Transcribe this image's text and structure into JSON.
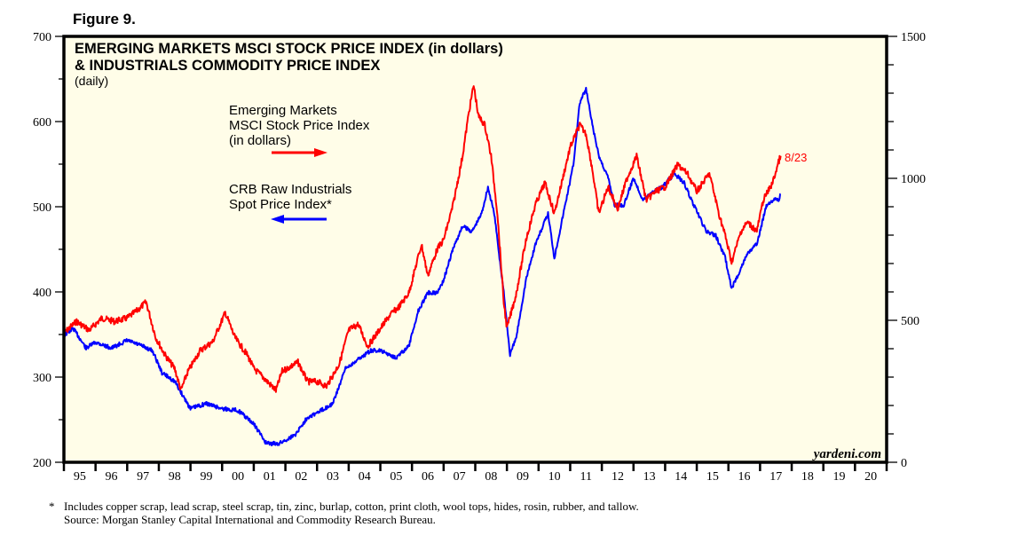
{
  "figure_label": "Figure 9.",
  "watermark": "yardeni.com",
  "footnote": {
    "asterisk": "*",
    "line1": "Includes copper scrap, lead scrap, steel scrap, tin, zinc, burlap, cotton, print cloth, wool tops, hides, rosin, rubber, and tallow.",
    "line2": "Source: Morgan Stanley Capital International and Commodity Research Bureau."
  },
  "colors": {
    "background": "#fffde8",
    "em": "#ff0000",
    "crb": "#0000ff",
    "frame": "#000000"
  },
  "chart_data": {
    "type": "line",
    "title": "EMERGING MARKETS MSCI STOCK PRICE INDEX (in dollars)",
    "title_line2": "& INDUSTRIALS COMMODITY PRICE INDEX",
    "subtitle": "(daily)",
    "end_date_label": "8/23",
    "xlim": [
      1995,
      2021
    ],
    "x_tick_labels": [
      "95",
      "96",
      "97",
      "98",
      "99",
      "00",
      "01",
      "02",
      "03",
      "04",
      "05",
      "06",
      "07",
      "08",
      "09",
      "10",
      "11",
      "12",
      "13",
      "14",
      "15",
      "16",
      "17",
      "18",
      "19",
      "20"
    ],
    "left_axis": {
      "ylim": [
        200,
        700
      ],
      "ticks": [
        200,
        300,
        400,
        500,
        600,
        700
      ],
      "minor_step": 50
    },
    "right_axis": {
      "ylim": [
        0,
        1500
      ],
      "ticks": [
        0,
        500,
        1000,
        1500
      ],
      "minor_step": 100
    },
    "grid": false,
    "legend": [
      {
        "lines": [
          "Emerging Markets",
          "MSCI Stock Price Index",
          "(in dollars)"
        ],
        "arrow": "right",
        "series": "em"
      },
      {
        "lines": [
          "CRB Raw Industrials",
          "Spot Price Index*"
        ],
        "arrow": "left",
        "series": "crb"
      }
    ],
    "series": [
      {
        "id": "em",
        "name": "Emerging Markets MSCI Stock Price Index (in dollars)",
        "axis": "right",
        "x": [
          1995.0,
          1995.4,
          1995.8,
          1996.2,
          1996.6,
          1997.0,
          1997.3,
          1997.6,
          1997.9,
          1998.2,
          1998.5,
          1998.7,
          1998.9,
          1999.3,
          1999.7,
          2000.1,
          2000.4,
          2000.8,
          2001.0,
          2001.3,
          2001.7,
          2001.9,
          2002.4,
          2002.7,
          2003.0,
          2003.3,
          2003.7,
          2004.0,
          2004.3,
          2004.6,
          2004.9,
          2005.3,
          2005.6,
          2005.9,
          2006.3,
          2006.5,
          2006.8,
          2007.0,
          2007.3,
          2007.6,
          2007.8,
          2007.95,
          2008.1,
          2008.3,
          2008.5,
          2008.7,
          2008.9,
          2009.0,
          2009.3,
          2009.6,
          2009.9,
          2010.2,
          2010.5,
          2010.8,
          2011.0,
          2011.3,
          2011.5,
          2011.7,
          2011.9,
          2012.2,
          2012.5,
          2012.8,
          2013.1,
          2013.4,
          2013.7,
          2014.0,
          2014.4,
          2014.7,
          2015.0,
          2015.4,
          2015.7,
          2015.9,
          2016.1,
          2016.4,
          2016.6,
          2016.9,
          2017.1,
          2017.4,
          2017.6,
          2017.65
        ],
        "values": [
          455,
          496,
          465,
          508,
          496,
          508,
          533,
          564,
          440,
          377,
          330,
          253,
          315,
          393,
          424,
          527,
          440,
          377,
          330,
          299,
          253,
          321,
          352,
          284,
          284,
          268,
          346,
          465,
          486,
          408,
          455,
          518,
          549,
          596,
          767,
          658,
          751,
          783,
          907,
          1079,
          1235,
          1328,
          1219,
          1188,
          1079,
          876,
          564,
          471,
          596,
          783,
          907,
          985,
          876,
          1017,
          1110,
          1188,
          1157,
          1032,
          876,
          970,
          892,
          1001,
          1079,
          923,
          954,
          970,
          1048,
          1017,
          954,
          1017,
          876,
          798,
          705,
          814,
          845,
          814,
          923,
          985,
          1063,
          1079
        ]
      },
      {
        "id": "crb",
        "name": "CRB Raw Industrials Spot Price Index",
        "axis": "left",
        "x": [
          1995.0,
          1995.3,
          1995.7,
          1996.0,
          1996.5,
          1997.0,
          1997.5,
          1997.8,
          1998.1,
          1998.5,
          1999.0,
          1999.5,
          2000.0,
          2000.5,
          2001.0,
          2001.4,
          2001.8,
          2002.3,
          2002.7,
          2003.0,
          2003.5,
          2003.9,
          2004.3,
          2004.7,
          2005.0,
          2005.5,
          2005.9,
          2006.2,
          2006.5,
          2006.8,
          2007.0,
          2007.3,
          2007.6,
          2007.9,
          2008.2,
          2008.4,
          2008.6,
          2008.9,
          2009.1,
          2009.3,
          2009.6,
          2009.9,
          2010.3,
          2010.5,
          2010.9,
          2011.1,
          2011.3,
          2011.5,
          2011.7,
          2011.9,
          2012.2,
          2012.4,
          2012.7,
          2013.0,
          2013.3,
          2013.6,
          2013.9,
          2014.3,
          2014.6,
          2014.9,
          2015.3,
          2015.6,
          2015.9,
          2016.1,
          2016.3,
          2016.6,
          2016.9,
          2017.2,
          2017.4,
          2017.6,
          2017.65
        ],
        "values": [
          349,
          357,
          334,
          341,
          334,
          343,
          336,
          331,
          305,
          295,
          263,
          269,
          263,
          261,
          245,
          222,
          222,
          232,
          253,
          258,
          269,
          310,
          321,
          331,
          331,
          323,
          336,
          378,
          399,
          399,
          414,
          451,
          477,
          471,
          492,
          523,
          492,
          399,
          326,
          347,
          414,
          456,
          492,
          440,
          513,
          549,
          622,
          638,
          596,
          560,
          534,
          502,
          502,
          534,
          508,
          518,
          523,
          539,
          528,
          502,
          471,
          466,
          440,
          404,
          420,
          445,
          456,
          502,
          508,
          508,
          515
        ]
      }
    ]
  }
}
